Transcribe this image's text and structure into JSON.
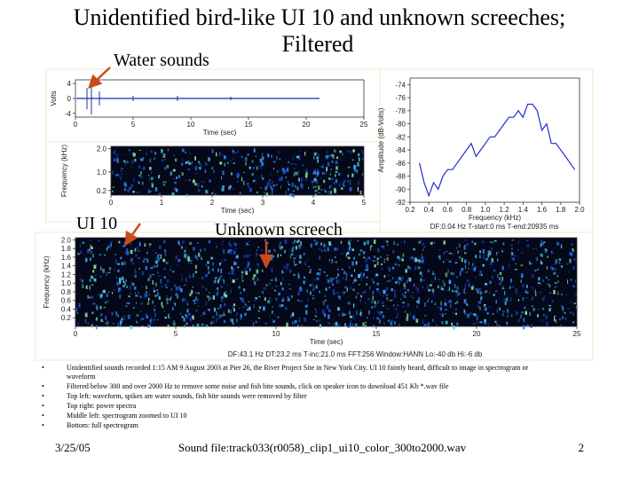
{
  "title_lines": [
    "Unidentified bird-like UI 10 and unknown screeches;",
    "Filtered"
  ],
  "annotations": [
    "Water sounds",
    "UI 10",
    "Unknown screech"
  ],
  "waveform": {
    "ylabel": "Volts",
    "xlabel": "Time (sec)",
    "xlim": [
      0,
      25
    ],
    "xticks": [
      0,
      5,
      10,
      15,
      20,
      25
    ],
    "ylim": [
      -5,
      5
    ],
    "yticks": [
      -4,
      0,
      4
    ]
  },
  "spectrum": {
    "type": "line",
    "ylabel": "Amplitude (dB-Volts)",
    "xlabel": "Frequency (kHz)",
    "xlim": [
      0.2,
      2.0
    ],
    "xticks": [
      0.2,
      0.4,
      0.6,
      0.8,
      {
        "value": 1,
        "label": "1.0"
      },
      1.2,
      1.4,
      1.6,
      1.8,
      {
        "value": 2,
        "label": "2.0"
      }
    ],
    "ylim": [
      -92,
      -73
    ],
    "yticks": [
      -92,
      -90,
      -88,
      -86,
      -84,
      -82,
      -80,
      -78,
      -76,
      -74
    ],
    "color": "#1f2fd0",
    "x": [
      0.3,
      0.35,
      0.4,
      0.45,
      0.5,
      0.55,
      0.6,
      0.65,
      0.7,
      0.75,
      0.8,
      0.85,
      0.9,
      0.95,
      1.0,
      1.05,
      1.1,
      1.15,
      1.2,
      1.25,
      1.3,
      1.35,
      1.4,
      1.45,
      1.5,
      1.55,
      1.6,
      1.65,
      1.7,
      1.75,
      1.8,
      1.85,
      1.9,
      1.95
    ],
    "values": [
      -86,
      -89,
      -91,
      -89,
      -90,
      -88,
      -87,
      -87,
      -86,
      -85,
      -84,
      -83,
      -85,
      -84,
      -83,
      -82,
      -82,
      -81,
      -80,
      -79,
      -79,
      -78,
      -79,
      -77,
      -77,
      -78,
      -81,
      -80,
      -83,
      -83,
      -84,
      -85,
      -86,
      -87
    ],
    "footer": "DF:0.04 Hz   T-start:0 ms   T-end:20935 ms"
  },
  "middle_spectrogram": {
    "ylabel": "Frequency (kHz)",
    "xlabel": "Time (sec)",
    "xlim": [
      0,
      5
    ],
    "xticks": [
      0,
      1,
      2,
      3,
      4,
      5
    ],
    "ylim": [
      0,
      2.1
    ],
    "yticks": [
      0.2,
      {
        "value": 1,
        "label": "1.0"
      },
      {
        "value": 2,
        "label": "2.0"
      }
    ]
  },
  "bottom_spectrogram": {
    "ylabel": "Frequency (kHz)",
    "xlabel": "Time (sec)",
    "xlim": [
      0,
      25
    ],
    "xticks": [
      0,
      5,
      10,
      15,
      20,
      25
    ],
    "ylim": [
      0,
      2.05
    ],
    "yticks": [
      0.2,
      0.4,
      0.6,
      0.8,
      {
        "value": 1,
        "label": "1.0"
      },
      1.2,
      1.4,
      1.6,
      1.8,
      {
        "value": 2,
        "label": "2.0"
      }
    ],
    "footer": "DF:43.1 Hz   DT:23.2 ms   T-inc:21.0 ms   FFT:256   Window:HANN   Lo:-40 db   Hi:-6 db"
  },
  "bullets": [
    "Unidentified sounds recorded 1:15 AM 9 August 2003 at Pier 26, the River Project Site in New York City.  UI 10 faintly heard, difficult to image in spectrogram or waveform",
    "Filtered below 300 and over 2000 Hz to remove some noise and fish bite sounds, click on speaker icon to download 451 Kb *.wav file",
    "Top left: waveform, spikes are water sounds, fish bite sounds were removed by filter",
    "Top right: power spectra",
    "Middle left: spectrogram zoomed to UI 10",
    "Bottom: full spectrogram"
  ],
  "footer": {
    "date": "3/25/05",
    "file": "Sound file:track033(r0058)_clip1_ui10_color_300to2000.wav",
    "page": "2"
  }
}
